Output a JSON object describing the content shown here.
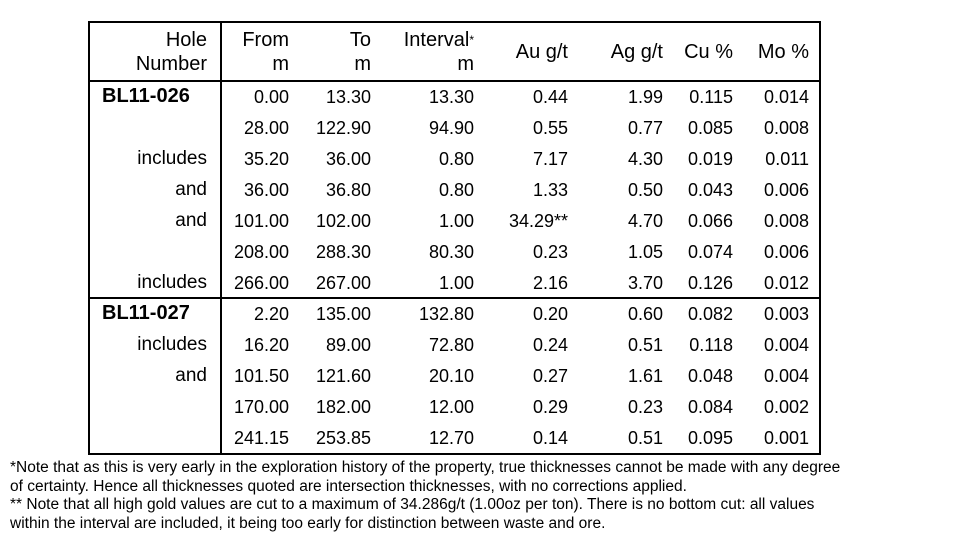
{
  "headers": {
    "hole": [
      "Hole",
      "Number"
    ],
    "from": [
      "From",
      "m"
    ],
    "to": [
      "To",
      "m"
    ],
    "interval": [
      "Interval",
      "m"
    ],
    "interval_star": "*",
    "au": "Au g/t",
    "ag": "Ag g/t",
    "cu": "Cu %",
    "mo": "Mo %"
  },
  "groups": [
    {
      "hole": "BL11-026",
      "rows": [
        {
          "label": "",
          "from": "0.00",
          "to": "13.30",
          "interval": "13.30",
          "au": "0.44",
          "ag": "1.99",
          "cu": "0.115",
          "mo": "0.014"
        },
        {
          "label": "",
          "from": "28.00",
          "to": "122.90",
          "interval": "94.90",
          "au": "0.55",
          "ag": "0.77",
          "cu": "0.085",
          "mo": "0.008"
        },
        {
          "label": "includes",
          "from": "35.20",
          "to": "36.00",
          "interval": "0.80",
          "au": "7.17",
          "ag": "4.30",
          "cu": "0.019",
          "mo": "0.011"
        },
        {
          "label": "and",
          "from": "36.00",
          "to": "36.80",
          "interval": "0.80",
          "au": "1.33",
          "ag": "0.50",
          "cu": "0.043",
          "mo": "0.006"
        },
        {
          "label": "and",
          "from": "101.00",
          "to": "102.00",
          "interval": "1.00",
          "au": "34.29**",
          "ag": "4.70",
          "cu": "0.066",
          "mo": "0.008"
        },
        {
          "label": "",
          "from": "208.00",
          "to": "288.30",
          "interval": "80.30",
          "au": "0.23",
          "ag": "1.05",
          "cu": "0.074",
          "mo": "0.006"
        },
        {
          "label": "includes",
          "from": "266.00",
          "to": "267.00",
          "interval": "1.00",
          "au": "2.16",
          "ag": "3.70",
          "cu": "0.126",
          "mo": "0.012"
        }
      ]
    },
    {
      "hole": "BL11-027",
      "rows": [
        {
          "label": "",
          "from": "2.20",
          "to": "135.00",
          "interval": "132.80",
          "au": "0.20",
          "ag": "0.60",
          "cu": "0.082",
          "mo": "0.003"
        },
        {
          "label": "includes",
          "from": "16.20",
          "to": "89.00",
          "interval": "72.80",
          "au": "0.24",
          "ag": "0.51",
          "cu": "0.118",
          "mo": "0.004"
        },
        {
          "label": "and",
          "from": "101.50",
          "to": "121.60",
          "interval": "20.10",
          "au": "0.27",
          "ag": "1.61",
          "cu": "0.048",
          "mo": "0.004"
        },
        {
          "label": "",
          "from": "170.00",
          "to": "182.00",
          "interval": "12.00",
          "au": "0.29",
          "ag": "0.23",
          "cu": "0.084",
          "mo": "0.002"
        },
        {
          "label": "",
          "from": "241.15",
          "to": "253.85",
          "interval": "12.70",
          "au": "0.14",
          "ag": "0.51",
          "cu": "0.095",
          "mo": "0.001"
        }
      ]
    }
  ],
  "notes": [
    "*Note that as this is very early in the exploration history of the property, true thicknesses cannot be made with any degree",
    "of certainty.  Hence all thicknesses quoted are intersection thicknesses, with no corrections applied.",
    "** Note that all high gold values are cut to a maximum of 34.286g/t (1.00oz per ton).  There is no bottom cut: all values",
    "within the interval are included, it being too early for distinction between waste and ore."
  ]
}
